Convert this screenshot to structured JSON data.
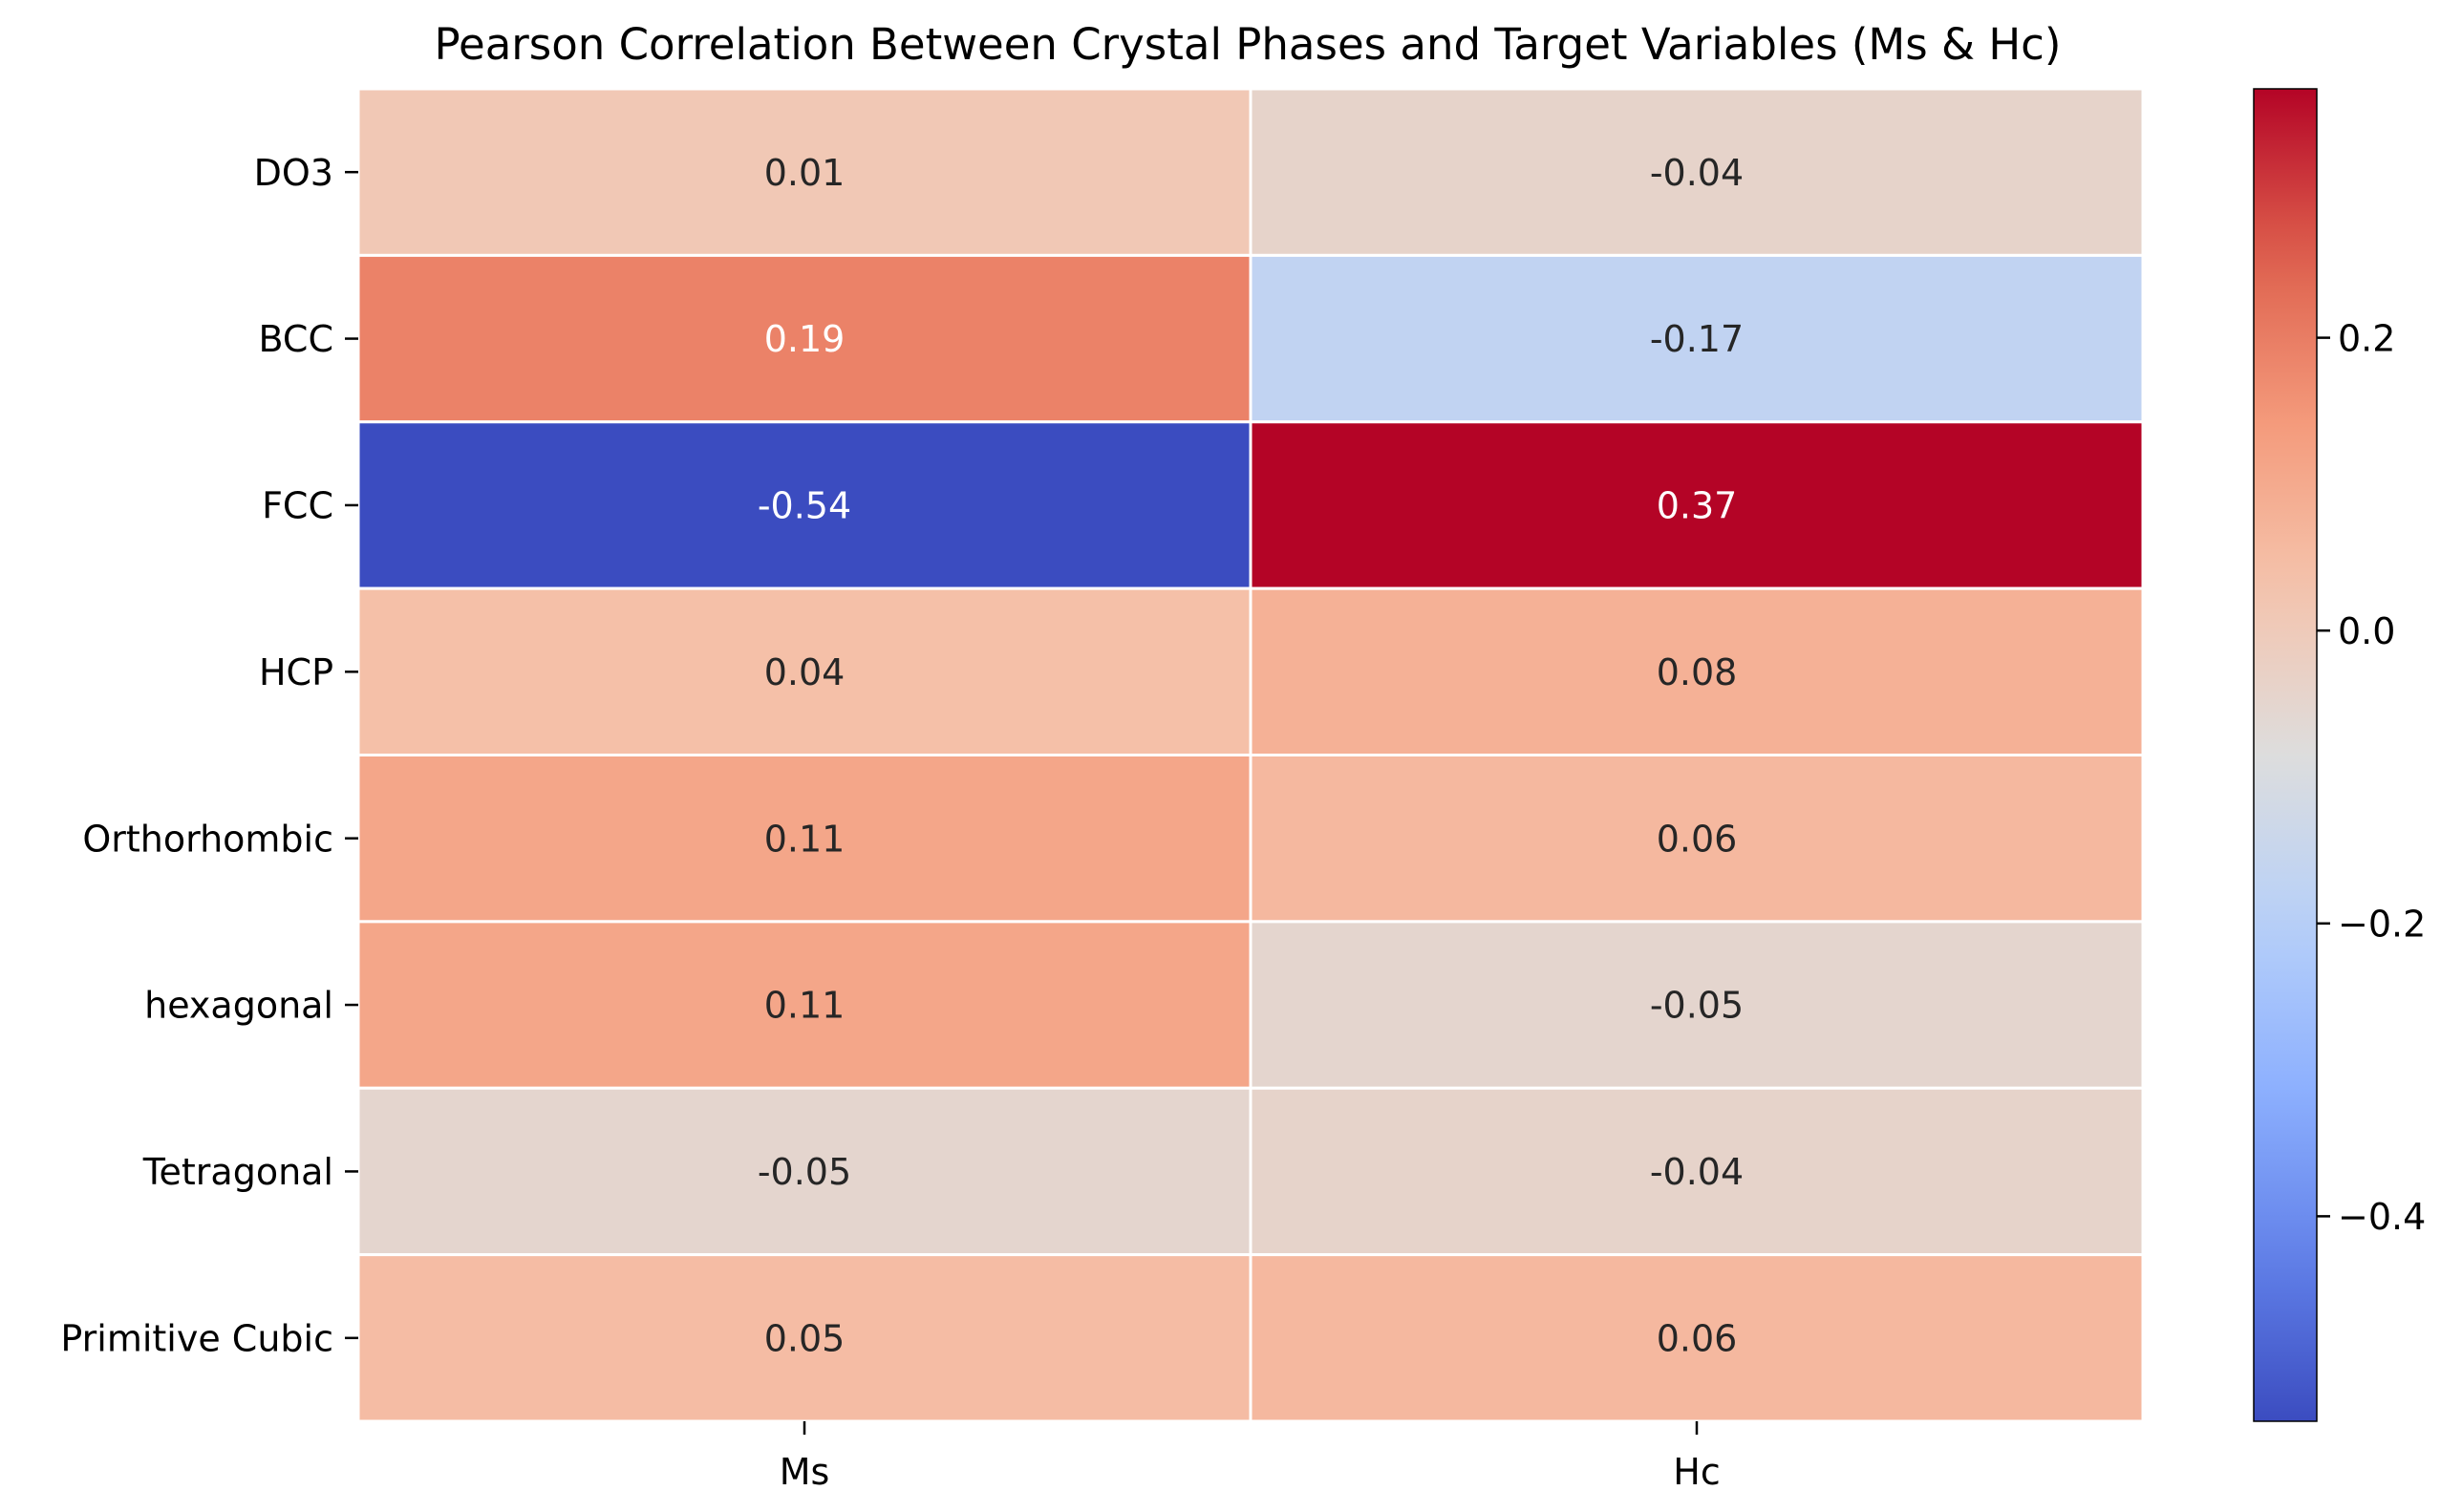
{
  "chart_data": {
    "type": "heatmap",
    "title": "Pearson Correlation Between Crystal Phases and Target Variables (Ms & Hc)",
    "xlabel": "",
    "ylabel": "",
    "columns": [
      "Ms",
      "Hc"
    ],
    "rows": [
      "DO3",
      "BCC",
      "FCC",
      "HCP",
      "Orthorhombic",
      "hexagonal",
      "Tetragonal",
      "Primitive Cubic"
    ],
    "values": [
      [
        0.01,
        -0.04
      ],
      [
        0.19,
        -0.17
      ],
      [
        -0.54,
        0.37
      ],
      [
        0.04,
        0.08
      ],
      [
        0.11,
        0.06
      ],
      [
        0.11,
        -0.05
      ],
      [
        -0.05,
        -0.04
      ],
      [
        0.05,
        0.06
      ]
    ],
    "cell_labels": [
      [
        "0.01",
        "-0.04"
      ],
      [
        "0.19",
        "-0.17"
      ],
      [
        "-0.54",
        "0.37"
      ],
      [
        "0.04",
        "0.08"
      ],
      [
        "0.11",
        "0.06"
      ],
      [
        "0.11",
        "-0.05"
      ],
      [
        "-0.05",
        "-0.04"
      ],
      [
        "0.05",
        "0.06"
      ]
    ],
    "colormap": "coolwarm",
    "colorbar": {
      "range": [
        -0.54,
        0.37
      ],
      "ticks": [
        0.2,
        0.0,
        -0.2,
        -0.4
      ],
      "tick_labels": [
        "0.2",
        "0.0",
        "−0.2",
        "−0.4"
      ]
    },
    "grid": true,
    "cell_border_color": "#ffffff",
    "dark_text_color": "#262626",
    "light_text_color": "#ffffff"
  }
}
